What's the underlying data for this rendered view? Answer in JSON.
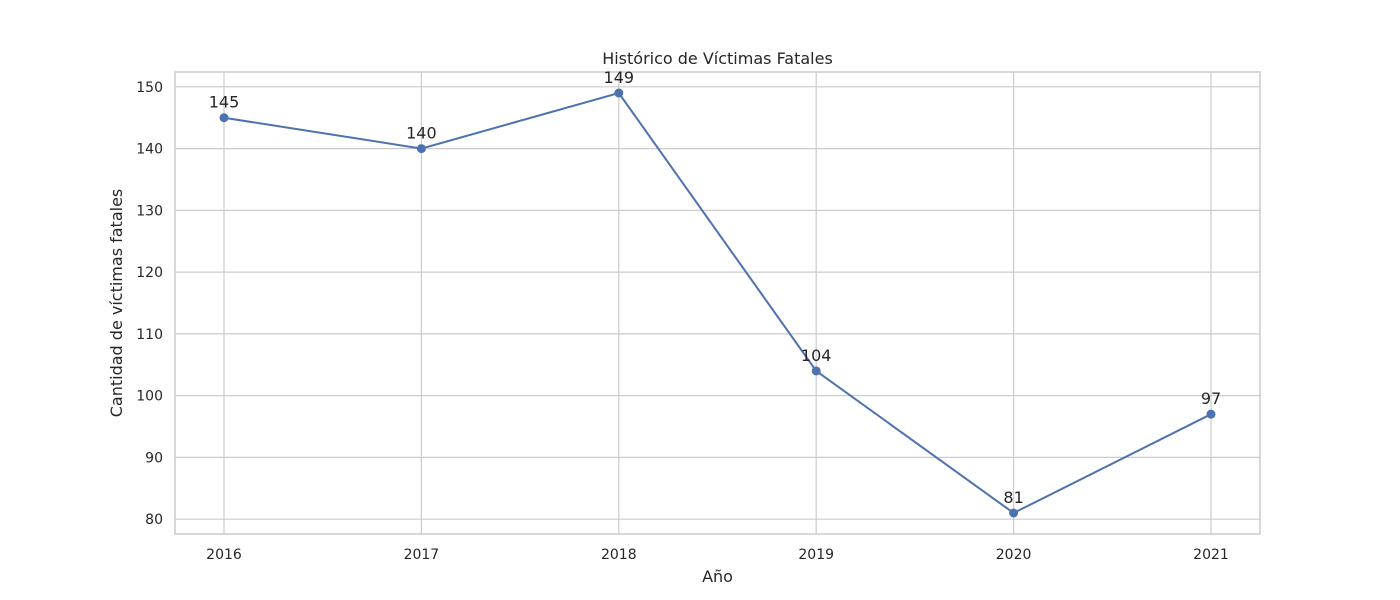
{
  "chart_data": {
    "type": "line",
    "title": "Histórico de Víctimas Fatales",
    "xlabel": "Año",
    "ylabel": "Cantidad de víctimas fatales",
    "x": [
      "2016",
      "2017",
      "2018",
      "2019",
      "2020",
      "2021"
    ],
    "series": [
      {
        "values": [
          145,
          140,
          149,
          104,
          81,
          97
        ],
        "color": "#4c72b0"
      }
    ],
    "data_labels": [
      "145",
      "140",
      "149",
      "104",
      "81",
      "97"
    ],
    "y_ticks": [
      80,
      90,
      100,
      110,
      120,
      130,
      140,
      150
    ],
    "ylim": [
      77.6,
      152.4
    ],
    "grid": true,
    "colors": {
      "line": "#4c72b0",
      "grid": "#cccccc",
      "text": "#262626"
    }
  }
}
